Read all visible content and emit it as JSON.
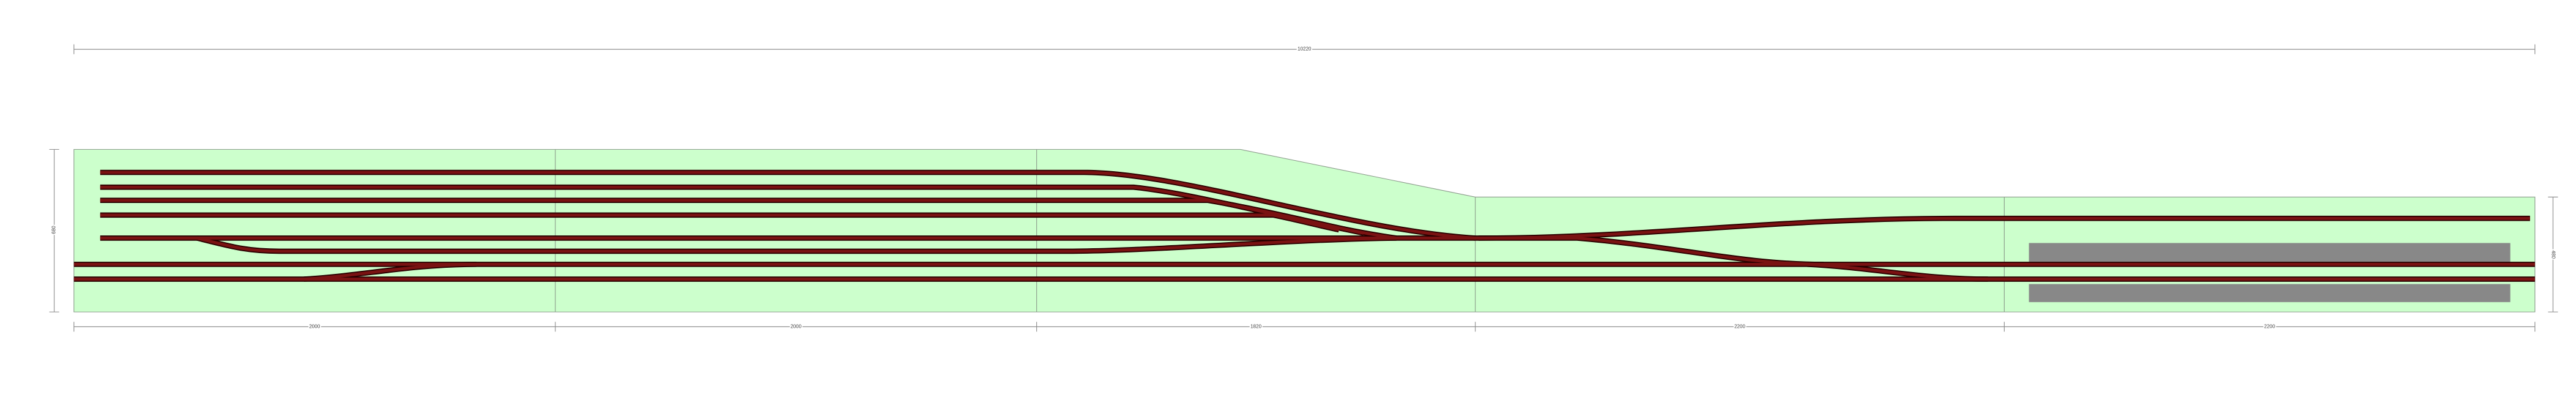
{
  "dimensions": {
    "total": "10220",
    "modules": [
      "2000",
      "2000",
      "1820",
      "2200",
      "2200"
    ],
    "left_height": "680",
    "right_height": "480"
  }
}
